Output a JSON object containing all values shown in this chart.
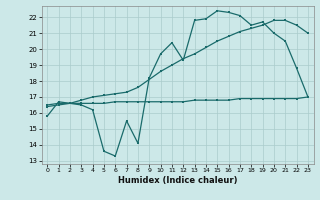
{
  "xlabel": "Humidex (Indice chaleur)",
  "bg_color": "#cce8e8",
  "grid_color": "#aacccc",
  "line_color": "#1a6b6b",
  "xlim": [
    -0.5,
    23.5
  ],
  "ylim": [
    12.8,
    22.7
  ],
  "yticks": [
    13,
    14,
    15,
    16,
    17,
    18,
    19,
    20,
    21,
    22
  ],
  "xticks": [
    0,
    1,
    2,
    3,
    4,
    5,
    6,
    7,
    8,
    9,
    10,
    11,
    12,
    13,
    14,
    15,
    16,
    17,
    18,
    19,
    20,
    21,
    22,
    23
  ],
  "line1_x": [
    0,
    1,
    2,
    3,
    4,
    5,
    6,
    7,
    8,
    9,
    10,
    11,
    12,
    13,
    14,
    15,
    16,
    17,
    18,
    19,
    20,
    21,
    22,
    23
  ],
  "line1_y": [
    15.8,
    16.7,
    16.6,
    16.5,
    16.2,
    13.6,
    13.3,
    15.5,
    14.1,
    18.2,
    19.7,
    20.4,
    19.3,
    21.8,
    21.9,
    22.4,
    22.3,
    22.1,
    21.5,
    21.7,
    21.0,
    20.5,
    18.8,
    17.0
  ],
  "line2_x": [
    0,
    1,
    2,
    3,
    4,
    5,
    6,
    7,
    8,
    9,
    10,
    11,
    12,
    13,
    14,
    15,
    16,
    17,
    18,
    19,
    20,
    21,
    22,
    23
  ],
  "line2_y": [
    16.4,
    16.5,
    16.6,
    16.8,
    17.0,
    17.1,
    17.2,
    17.3,
    17.6,
    18.1,
    18.6,
    19.0,
    19.4,
    19.7,
    20.1,
    20.5,
    20.8,
    21.1,
    21.3,
    21.5,
    21.8,
    21.8,
    21.5,
    21.0
  ],
  "line3_x": [
    0,
    1,
    2,
    3,
    4,
    5,
    6,
    7,
    8,
    9,
    10,
    11,
    12,
    13,
    14,
    15,
    16,
    17,
    18,
    19,
    20,
    21,
    22,
    23
  ],
  "line3_y": [
    16.5,
    16.6,
    16.6,
    16.6,
    16.6,
    16.6,
    16.7,
    16.7,
    16.7,
    16.7,
    16.7,
    16.7,
    16.7,
    16.8,
    16.8,
    16.8,
    16.8,
    16.9,
    16.9,
    16.9,
    16.9,
    16.9,
    16.9,
    17.0
  ]
}
